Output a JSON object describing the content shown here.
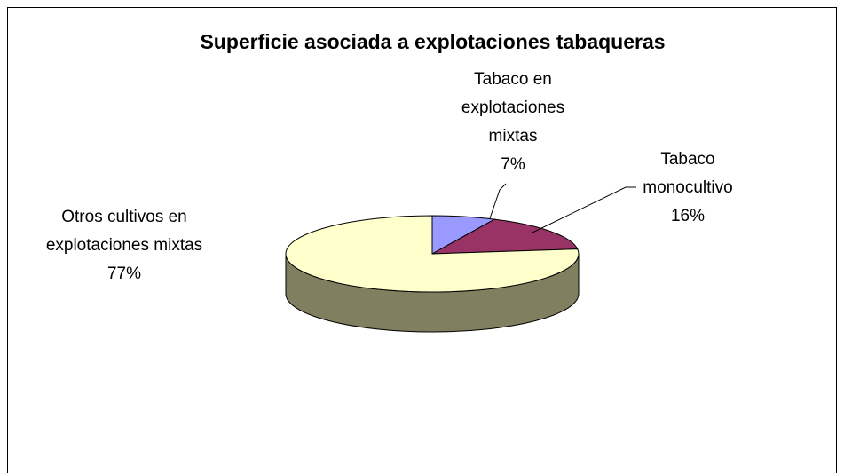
{
  "chart_data": {
    "type": "pie3d",
    "title": "Superficie asociada a explotaciones tabaqueras",
    "categories": [
      "Tabaco en explotaciones mixtas",
      "Tabaco monocultivo",
      "Otros cultivos en explotaciones mixtas"
    ],
    "values": [
      7,
      16,
      77
    ],
    "value_labels": [
      "7%",
      "16%",
      "77%"
    ],
    "colors": [
      "#9999ff",
      "#993366",
      "#ffffcc"
    ],
    "side_colors": [
      "#4d4d80",
      "#4d1a33",
      "#808060"
    ]
  }
}
